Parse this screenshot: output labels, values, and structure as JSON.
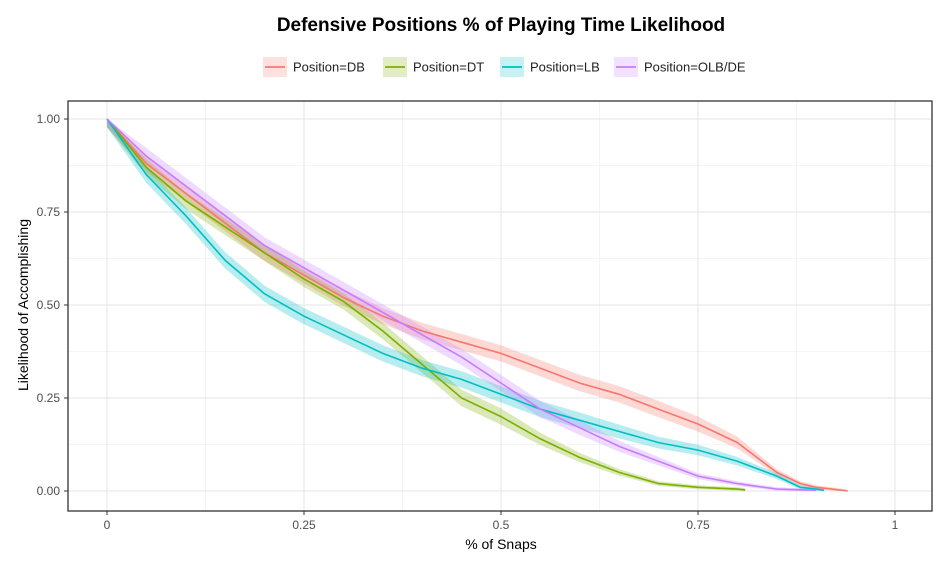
{
  "chart_data": {
    "type": "line",
    "title": "Defensive Positions % of Playing Time Likelihood",
    "xlabel": "% of Snaps",
    "ylabel": "Likelihood of Accomplishing",
    "xlim": [
      0,
      1
    ],
    "ylim": [
      0,
      1
    ],
    "x_ticks": [
      "0",
      "0.25",
      "0.5",
      "0.75",
      "1"
    ],
    "x_tick_values": [
      0,
      0.25,
      0.5,
      0.75,
      1
    ],
    "y_ticks": [
      "0.00",
      "0.25",
      "0.50",
      "0.75",
      "1.00"
    ],
    "y_tick_values": [
      0,
      0.25,
      0.5,
      0.75,
      1
    ],
    "grid": true,
    "legend_position": "top",
    "series": [
      {
        "name": "Position=DB",
        "color": "#F8766D",
        "x": [
          0,
          0.05,
          0.1,
          0.15,
          0.2,
          0.25,
          0.3,
          0.35,
          0.4,
          0.45,
          0.5,
          0.55,
          0.6,
          0.65,
          0.7,
          0.75,
          0.8,
          0.85,
          0.88,
          0.9,
          0.92,
          0.94
        ],
        "y": [
          1.0,
          0.88,
          0.8,
          0.72,
          0.64,
          0.58,
          0.52,
          0.47,
          0.43,
          0.4,
          0.37,
          0.33,
          0.29,
          0.26,
          0.22,
          0.18,
          0.13,
          0.05,
          0.02,
          0.01,
          0.005,
          0.0
        ]
      },
      {
        "name": "Position=DT",
        "color": "#7CAE00",
        "x": [
          0,
          0.05,
          0.1,
          0.15,
          0.2,
          0.25,
          0.3,
          0.35,
          0.4,
          0.45,
          0.5,
          0.55,
          0.6,
          0.65,
          0.7,
          0.75,
          0.8,
          0.81
        ],
        "y": [
          1.0,
          0.87,
          0.78,
          0.71,
          0.64,
          0.57,
          0.51,
          0.43,
          0.34,
          0.25,
          0.2,
          0.14,
          0.09,
          0.05,
          0.02,
          0.01,
          0.005,
          0.003
        ]
      },
      {
        "name": "Position=LB",
        "color": "#00BFC4",
        "x": [
          0,
          0.05,
          0.1,
          0.15,
          0.2,
          0.25,
          0.3,
          0.35,
          0.4,
          0.45,
          0.5,
          0.55,
          0.6,
          0.65,
          0.7,
          0.75,
          0.8,
          0.85,
          0.88,
          0.9,
          0.91
        ],
        "y": [
          1.0,
          0.85,
          0.74,
          0.62,
          0.53,
          0.47,
          0.42,
          0.37,
          0.33,
          0.3,
          0.26,
          0.22,
          0.19,
          0.16,
          0.13,
          0.11,
          0.08,
          0.04,
          0.01,
          0.005,
          0.002
        ]
      },
      {
        "name": "Position=OLB/DE",
        "color": "#C77CFF",
        "x": [
          0,
          0.05,
          0.1,
          0.15,
          0.2,
          0.25,
          0.3,
          0.35,
          0.4,
          0.45,
          0.5,
          0.55,
          0.6,
          0.65,
          0.7,
          0.75,
          0.8,
          0.85,
          0.9
        ],
        "y": [
          1.0,
          0.9,
          0.82,
          0.74,
          0.66,
          0.6,
          0.54,
          0.48,
          0.42,
          0.36,
          0.29,
          0.22,
          0.17,
          0.12,
          0.08,
          0.04,
          0.02,
          0.005,
          0.002
        ]
      }
    ]
  }
}
